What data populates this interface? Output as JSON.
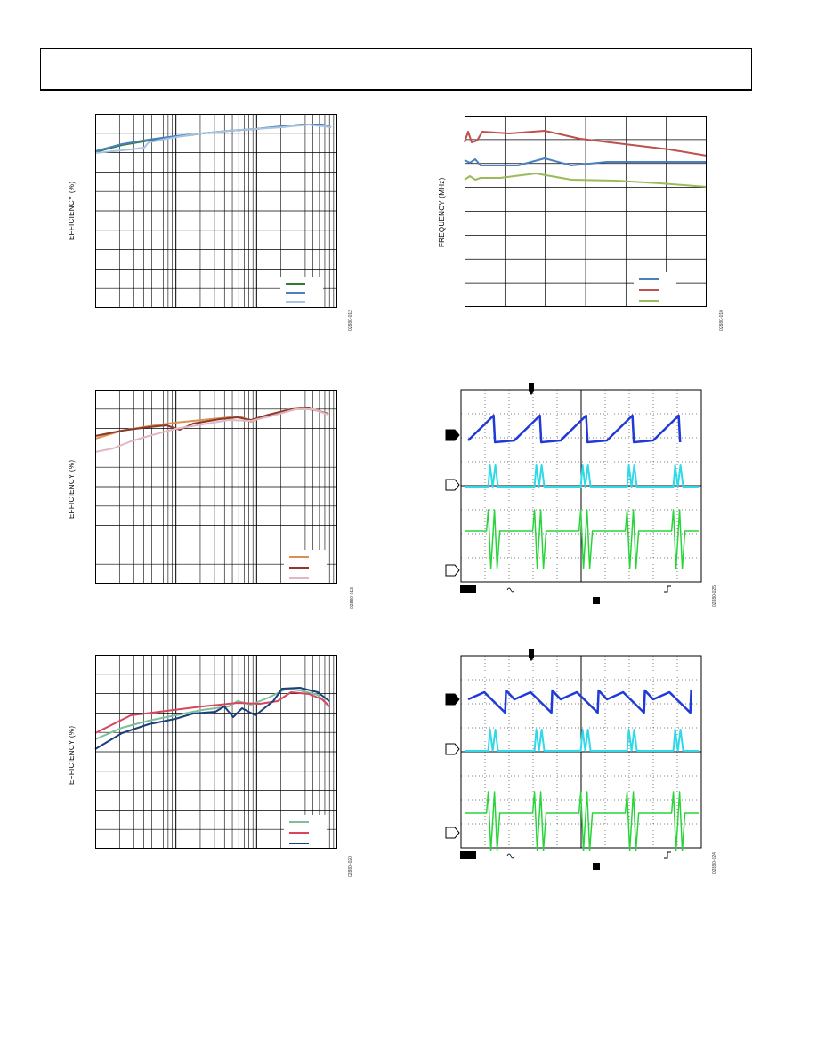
{
  "charts": [
    {
      "id": "eff1",
      "ylabel": "EFFICIENCY (%)",
      "figure_id": "02880-012",
      "log_x": true,
      "series_colors": [
        "#2e7d32",
        "#4a7fc1",
        "#a9c4e0"
      ]
    },
    {
      "id": "freq",
      "ylabel": "FREQUENCY (MHz)",
      "figure_id": "02880-010",
      "log_x": false,
      "series_colors": [
        "#4a7fc1",
        "#c0504d",
        "#9bbb59"
      ]
    },
    {
      "id": "eff2",
      "ylabel": "EFFICIENCY (%)",
      "figure_id": "02880-013",
      "log_x": true,
      "series_colors": [
        "#d9914f",
        "#8b3a2f",
        "#e2b7c2"
      ]
    },
    {
      "id": "scope1",
      "figure_id": "02880-025",
      "trace_colors": [
        "#1f3ad6",
        "#2fd9e8",
        "#29d43a"
      ]
    },
    {
      "id": "eff3",
      "ylabel": "EFFICIENCY (%)",
      "figure_id": "02880-020",
      "log_x": true,
      "series_colors": [
        "#7fbf9c",
        "#d9455f",
        "#1b3f7a"
      ]
    },
    {
      "id": "scope2",
      "figure_id": "02880-024",
      "trace_colors": [
        "#1f3ad6",
        "#2fd9e8",
        "#29d43a"
      ]
    }
  ]
}
